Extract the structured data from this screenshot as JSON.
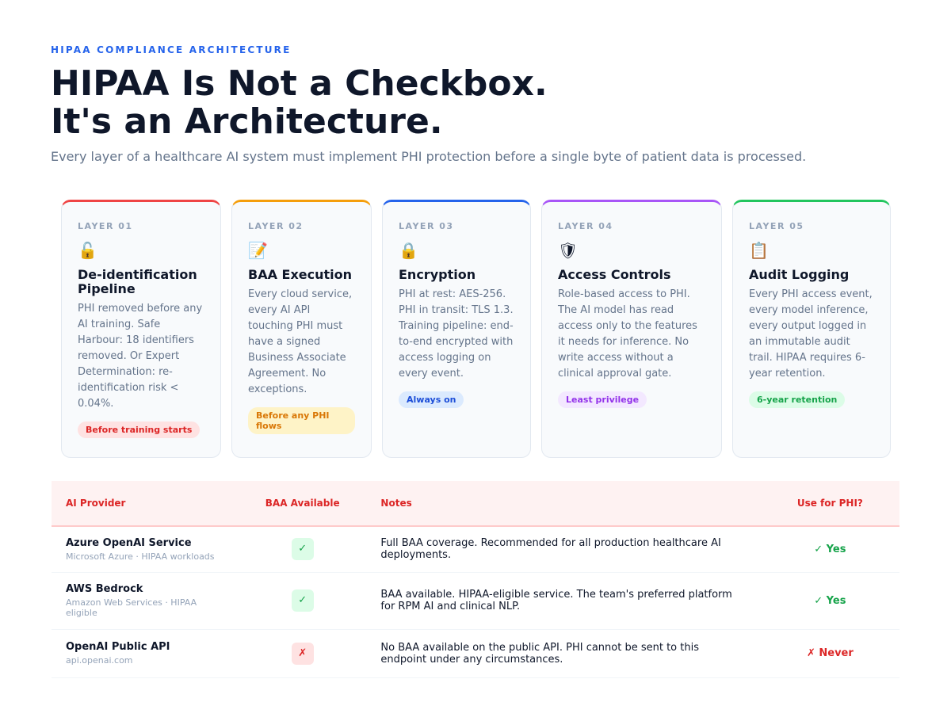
{
  "header": {
    "eyebrow": "HIPAA COMPLIANCE ARCHITECTURE",
    "title_line1": "HIPAA Is Not a Checkbox.",
    "title_line2": "It's an Architecture.",
    "subtitle": "Every layer of a healthcare AI system must implement PHI protection before a single byte of patient data is processed."
  },
  "layers": [
    {
      "label": "LAYER 01",
      "icon": "🔓",
      "title": "De-identification Pipeline",
      "text": "PHI removed before any AI training. Safe Harbour: 18 identifiers removed. Or Expert Determination: re-identification risk < 0.04%.",
      "badge": "Before training starts",
      "color": "#ef4444",
      "badge_bg": "#fee2e2",
      "badge_fg": "#dc2626"
    },
    {
      "label": "LAYER 02",
      "icon": "📝",
      "title": "BAA Execution",
      "text": "Every cloud service, every AI API touching PHI must have a signed Business Associate Agreement. No exceptions.",
      "badge": "Before any PHI flows",
      "color": "#f59e0b",
      "badge_bg": "#fef3c7",
      "badge_fg": "#d97706"
    },
    {
      "label": "LAYER 03",
      "icon": "🔒",
      "title": "Encryption",
      "text": "PHI at rest: AES-256. PHI in transit: TLS 1.3. Training pipeline: end-to-end encrypted with access logging on every event.",
      "badge": "Always on",
      "color": "#2563eb",
      "badge_bg": "#dbeafe",
      "badge_fg": "#1d4ed8"
    },
    {
      "label": "LAYER 04",
      "icon": "🛡",
      "title": "Access Controls",
      "text": "Role-based access to PHI. The AI model has read access only to the features it needs for inference. No write access without a clinical approval gate.",
      "badge": "Least privilege",
      "color": "#a855f7",
      "badge_bg": "#f3e8ff",
      "badge_fg": "#9333ea"
    },
    {
      "label": "LAYER 05",
      "icon": "📋",
      "title": "Audit Logging",
      "text": "Every PHI access event, every model inference, every output logged in an immutable audit trail. HIPAA requires 6-year retention.",
      "badge": "6-year retention",
      "color": "#22c55e",
      "badge_bg": "#dcfce7",
      "badge_fg": "#16a34a"
    }
  ],
  "table": {
    "headers": [
      "AI Provider",
      "BAA Available",
      "Notes",
      "Use for PHI?"
    ],
    "rows": [
      {
        "provider": "Azure OpenAI Service",
        "sub": "Microsoft Azure · HIPAA workloads",
        "baa": "✓",
        "notes": "Full BAA coverage. Recommended for all production healthcare AI deployments.",
        "use": "✓ Yes",
        "ok": true
      },
      {
        "provider": "AWS Bedrock",
        "sub": "Amazon Web Services · HIPAA eligible",
        "baa": "✓",
        "notes": "BAA available. HIPAA-eligible service. The team's preferred platform for RPM AI and clinical NLP.",
        "use": "✓ Yes",
        "ok": true
      },
      {
        "provider": "OpenAI Public API",
        "sub": "api.openai.com",
        "baa": "✗",
        "notes": "No BAA available on the public API. PHI cannot be sent to this endpoint under any circumstances.",
        "use": "✗ Never",
        "ok": false
      }
    ]
  }
}
